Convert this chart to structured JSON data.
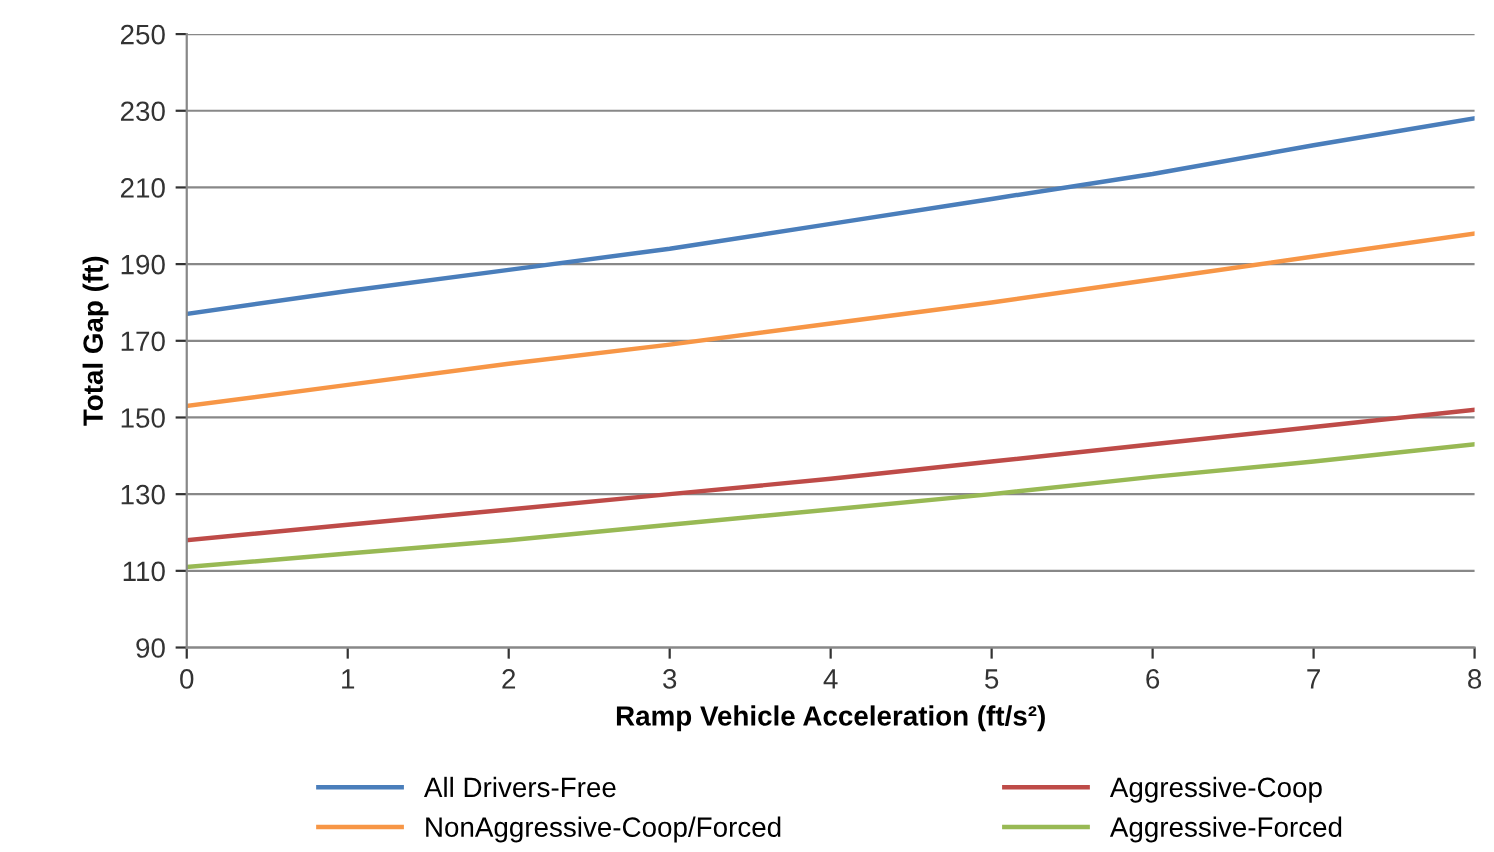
{
  "chart_data": {
    "type": "line",
    "xlabel": "Ramp Vehicle Acceleration (ft/s²)",
    "ylabel": "Total Gap (ft)",
    "x": [
      0,
      1,
      2,
      3,
      4,
      5,
      6,
      7,
      8
    ],
    "series": [
      {
        "name": "All Drivers-Free",
        "color": "#4a7ebb",
        "values": [
          177,
          183,
          188.5,
          194,
          200.5,
          207,
          213.5,
          221,
          228
        ]
      },
      {
        "name": "Aggressive-Coop",
        "color": "#be4b48",
        "values": [
          118,
          122,
          126,
          130,
          134,
          138.5,
          143,
          147.5,
          152
        ]
      },
      {
        "name": "NonAggressive-Coop/Forced",
        "color": "#f79646",
        "values": [
          153,
          158.5,
          164,
          169,
          174.5,
          180,
          186,
          192,
          198
        ]
      },
      {
        "name": "Aggressive-Forced",
        "color": "#98b954",
        "values": [
          111,
          114.5,
          118,
          122,
          126,
          130,
          134.5,
          138.5,
          143
        ]
      }
    ],
    "xlim": [
      0,
      8
    ],
    "xticks": [
      0,
      1,
      2,
      3,
      4,
      5,
      6,
      7,
      8
    ],
    "ylim": [
      90,
      250
    ],
    "yticks": [
      90,
      110,
      130,
      150,
      170,
      190,
      210,
      230,
      250
    ],
    "grid": "y",
    "legend": "bottom",
    "marker": "none",
    "line_style": "solid"
  }
}
